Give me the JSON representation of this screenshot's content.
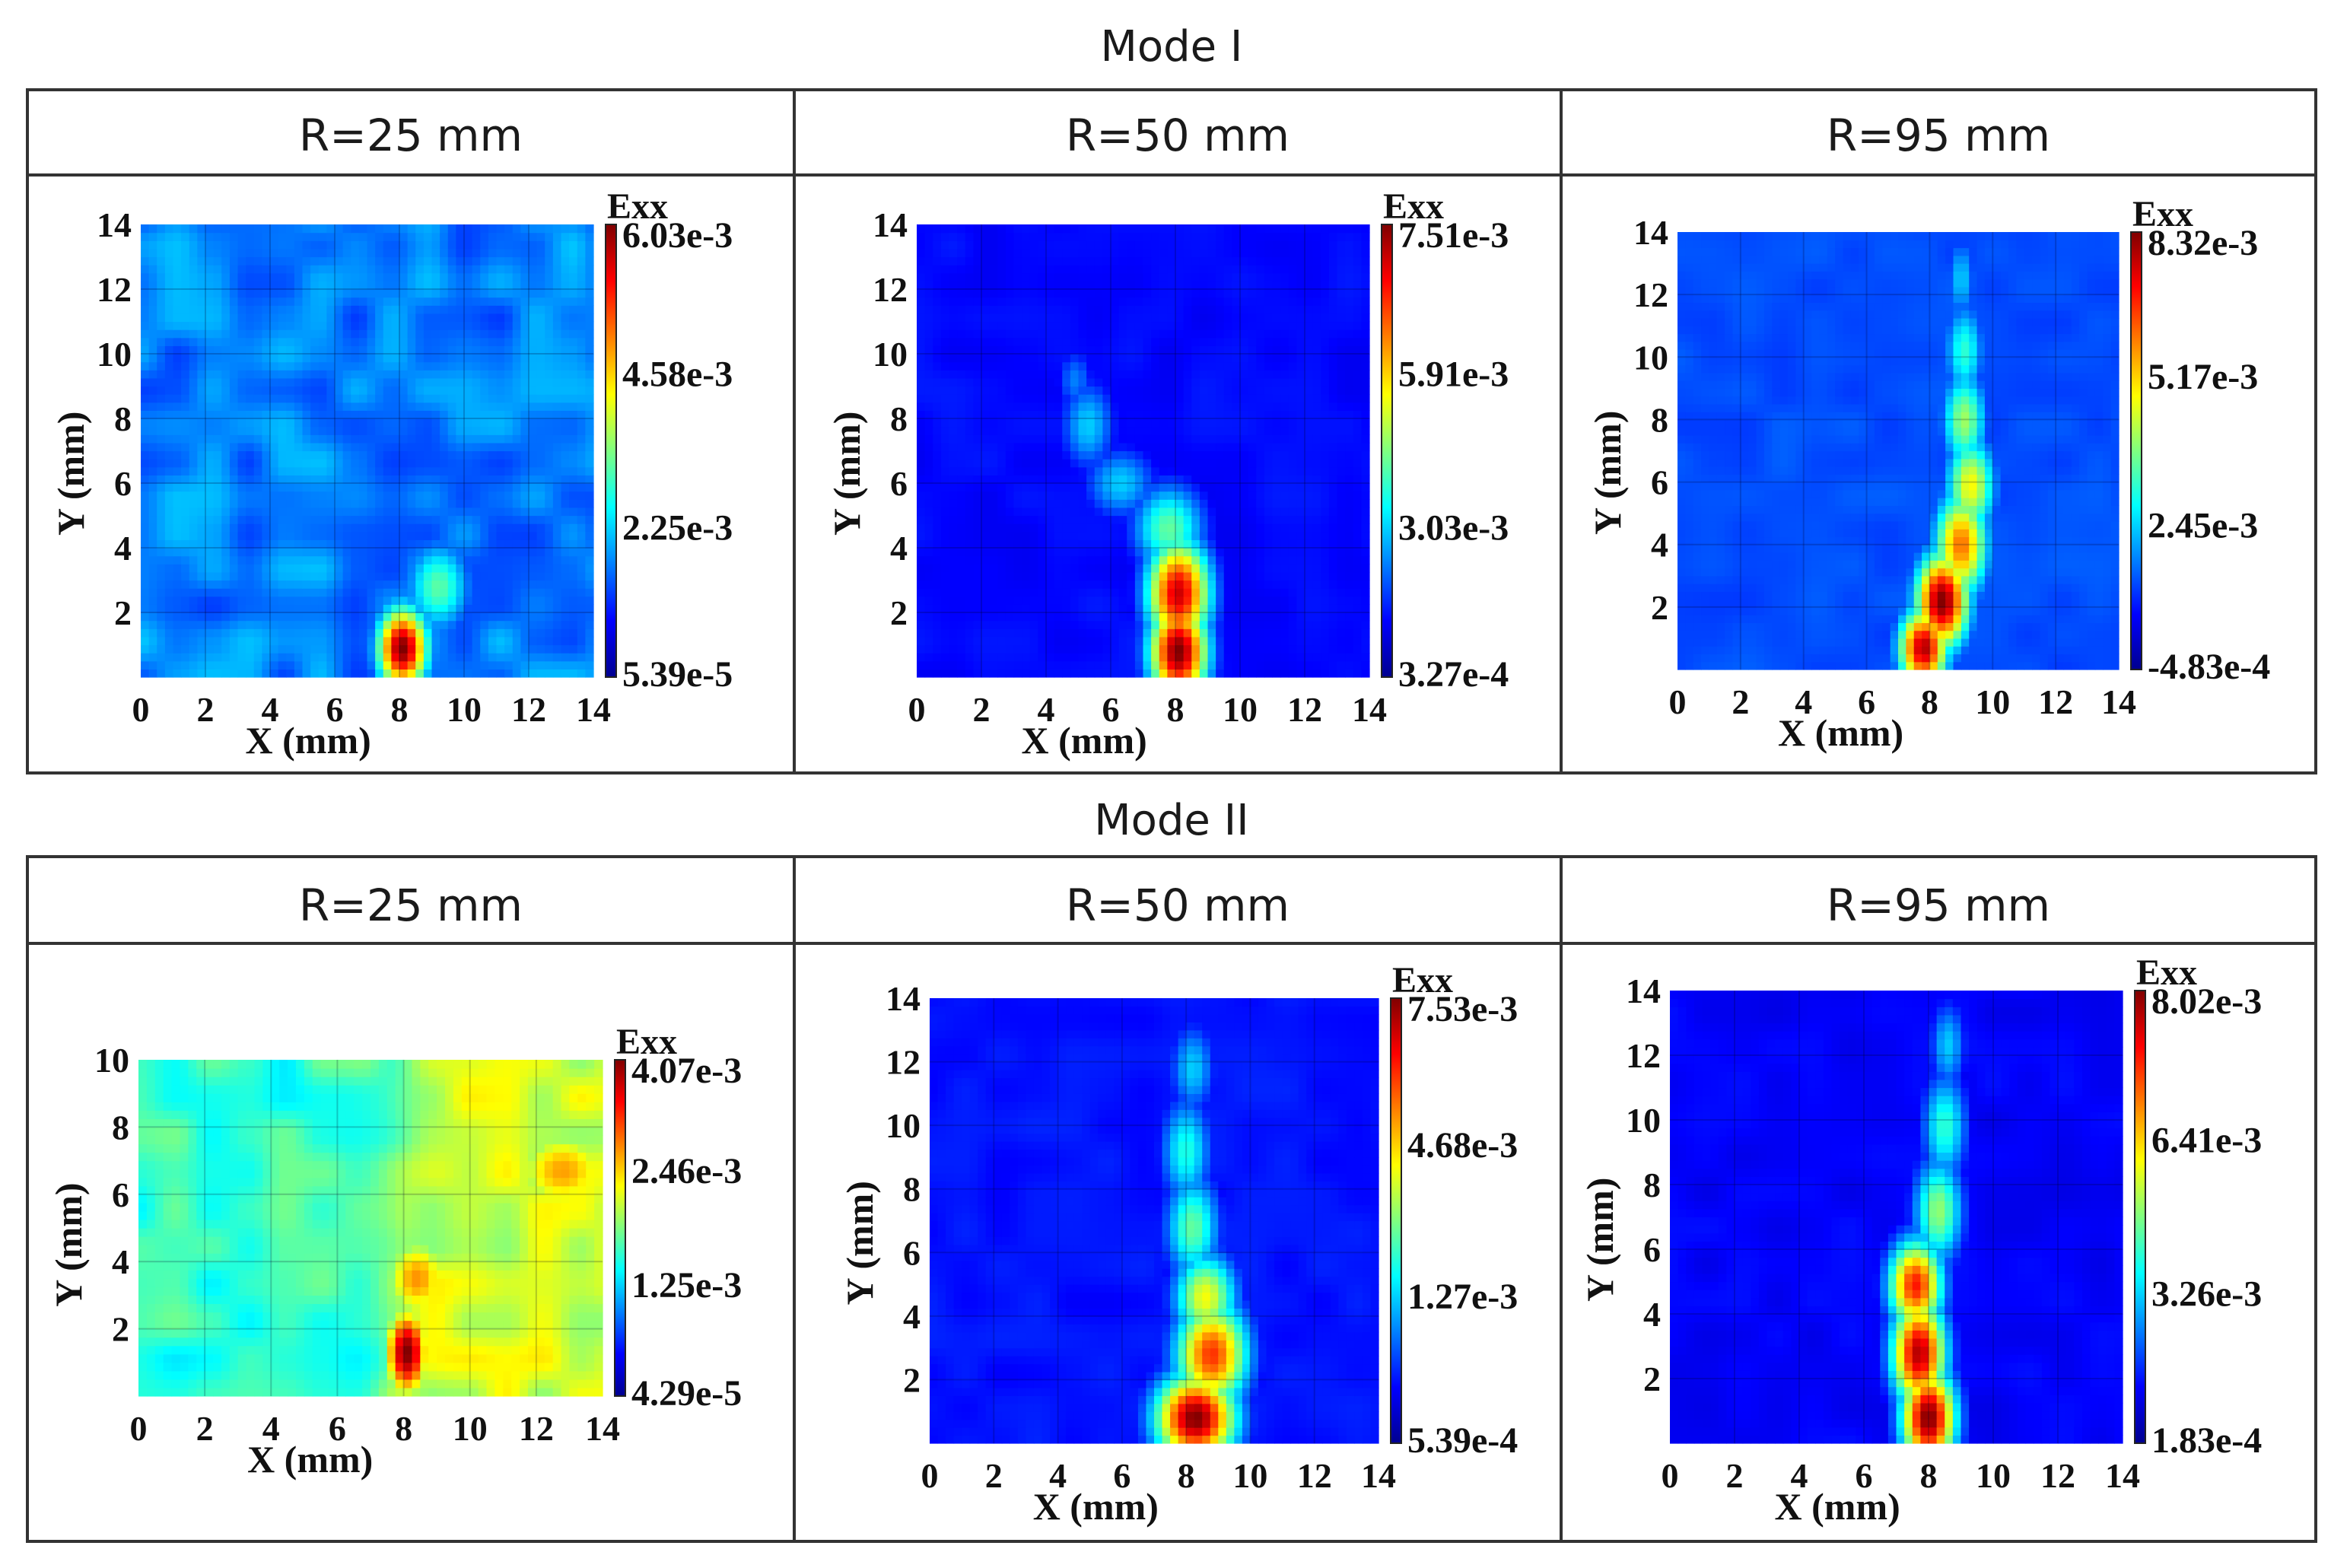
{
  "figure": {
    "modes": [
      {
        "title": "Mode I",
        "panels": [
          {
            "column_title": "R=25 mm",
            "cb_title": "Exx",
            "cb_labels": [
              "6.03e-3",
              "4.58e-3",
              "2.25e-3",
              "5.39e-5"
            ]
          },
          {
            "column_title": "R=50 mm",
            "cb_title": "Exx",
            "cb_labels": [
              "7.51e-3",
              "5.91e-3",
              "3.03e-3",
              "3.27e-4"
            ]
          },
          {
            "column_title": "R=95 mm",
            "cb_title": "Exx",
            "cb_labels": [
              "8.32e-3",
              "5.17e-3",
              "2.45e-3",
              "-4.83e-4"
            ]
          }
        ]
      },
      {
        "title": "Mode II",
        "panels": [
          {
            "column_title": "R=25 mm",
            "cb_title": "Exx",
            "cb_labels": [
              "4.07e-3",
              "2.46e-3",
              "1.25e-3",
              "4.29e-5"
            ]
          },
          {
            "column_title": "R=50 mm",
            "cb_title": "Exx",
            "cb_labels": [
              "7.53e-3",
              "4.68e-3",
              "1.27e-3",
              "5.39e-4"
            ]
          },
          {
            "column_title": "R=95 mm",
            "cb_title": "Exx",
            "cb_labels": [
              "8.02e-3",
              "6.41e-3",
              "3.26e-3",
              "1.83e-4"
            ]
          }
        ]
      }
    ]
  },
  "chart_data": [
    {
      "type": "heatmap",
      "title": "Mode I, R=25 mm",
      "xlabel": "X (mm)",
      "ylabel": "Y (mm)",
      "xlim": [
        0,
        14
      ],
      "ylim": [
        0,
        14
      ],
      "xticks": [
        0,
        2,
        4,
        6,
        8,
        10,
        12,
        14
      ],
      "yticks": [
        2,
        4,
        6,
        8,
        10,
        12,
        14
      ],
      "colorbar": {
        "label": "Exx",
        "max": 0.00603,
        "min": 5.39e-05,
        "ticks": [
          "6.03e-3",
          "4.58e-3",
          "2.25e-3",
          "5.39e-5"
        ]
      },
      "background_level": 0.25,
      "hotspots": [
        {
          "x": 8.1,
          "y": 0.9,
          "sx": 0.55,
          "sy": 0.9,
          "v": 1.0
        },
        {
          "x": 9.2,
          "y": 2.8,
          "sx": 0.7,
          "sy": 1.0,
          "v": 0.42
        },
        {
          "x": 13.0,
          "y": 4.5,
          "sx": 1.3,
          "sy": 1.6,
          "v": 0.15
        }
      ],
      "patchiness": 0.07
    },
    {
      "type": "heatmap",
      "title": "Mode I, R=50 mm",
      "xlabel": "X (mm)",
      "ylabel": "Y (mm)",
      "xlim": [
        0,
        14
      ],
      "ylim": [
        0,
        14
      ],
      "xticks": [
        0,
        2,
        4,
        6,
        8,
        10,
        12,
        14
      ],
      "yticks": [
        2,
        4,
        6,
        8,
        10,
        12,
        14
      ],
      "colorbar": {
        "label": "Exx",
        "max": 0.00751,
        "min": 0.000327,
        "ticks": [
          "7.51e-3",
          "5.91e-3",
          "3.03e-3",
          "3.27e-4"
        ]
      },
      "background_level": 0.13,
      "hotspots": [
        {
          "x": 8.1,
          "y": 0.8,
          "sx": 0.65,
          "sy": 1.1,
          "v": 1.0
        },
        {
          "x": 8.1,
          "y": 2.6,
          "sx": 0.7,
          "sy": 1.2,
          "v": 0.92
        },
        {
          "x": 7.8,
          "y": 4.6,
          "sx": 0.8,
          "sy": 1.0,
          "v": 0.45
        },
        {
          "x": 6.3,
          "y": 6.0,
          "sx": 0.8,
          "sy": 0.8,
          "v": 0.3
        },
        {
          "x": 5.3,
          "y": 7.8,
          "sx": 0.6,
          "sy": 1.0,
          "v": 0.3
        },
        {
          "x": 4.9,
          "y": 9.2,
          "sx": 0.4,
          "sy": 0.7,
          "v": 0.22
        }
      ],
      "patchiness": 0.02
    },
    {
      "type": "heatmap",
      "title": "Mode I, R=95 mm",
      "xlabel": "X (mm)",
      "ylabel": "Y (mm)",
      "xlim": [
        0,
        14
      ],
      "ylim": [
        0,
        14
      ],
      "xticks": [
        0,
        2,
        4,
        6,
        8,
        10,
        12,
        14
      ],
      "yticks": [
        2,
        4,
        6,
        8,
        10,
        12,
        14
      ],
      "colorbar": {
        "label": "Exx",
        "max": 0.00832,
        "min": -0.000483,
        "ticks": [
          "8.32e-3",
          "5.17e-3",
          "2.45e-3",
          "-4.83e-4"
        ]
      },
      "background_level": 0.2,
      "hotspots": [
        {
          "x": 7.8,
          "y": 0.7,
          "sx": 0.55,
          "sy": 0.9,
          "v": 0.95
        },
        {
          "x": 8.4,
          "y": 2.2,
          "sx": 0.6,
          "sy": 1.1,
          "v": 1.0
        },
        {
          "x": 9.0,
          "y": 4.0,
          "sx": 0.6,
          "sy": 1.2,
          "v": 0.75
        },
        {
          "x": 9.3,
          "y": 5.9,
          "sx": 0.55,
          "sy": 1.1,
          "v": 0.6
        },
        {
          "x": 9.1,
          "y": 8.0,
          "sx": 0.5,
          "sy": 1.1,
          "v": 0.5
        },
        {
          "x": 9.1,
          "y": 10.2,
          "sx": 0.45,
          "sy": 1.1,
          "v": 0.38
        },
        {
          "x": 9.0,
          "y": 12.5,
          "sx": 0.35,
          "sy": 1.0,
          "v": 0.28
        }
      ],
      "patchiness": 0.02
    },
    {
      "type": "heatmap",
      "title": "Mode II, R=25 mm",
      "xlabel": "X (mm)",
      "ylabel": "Y (mm)",
      "xlim": [
        0,
        14
      ],
      "ylim": [
        0,
        10
      ],
      "xticks": [
        0,
        2,
        4,
        6,
        8,
        10,
        12,
        14
      ],
      "yticks": [
        2,
        4,
        6,
        8,
        10
      ],
      "colorbar": {
        "label": "Exx",
        "max": 0.00407,
        "min": 4.29e-05,
        "ticks": [
          "4.07e-3",
          "2.46e-3",
          "1.25e-3",
          "4.29e-5"
        ]
      },
      "background_level": 0.42,
      "right_region_level": 0.58,
      "right_region_start_x": 7.8,
      "hotspots": [
        {
          "x": 8.1,
          "y": 1.3,
          "sx": 0.5,
          "sy": 1.0,
          "v": 1.0
        },
        {
          "x": 8.4,
          "y": 3.5,
          "sx": 0.8,
          "sy": 1.0,
          "v": 0.68
        },
        {
          "x": 12.8,
          "y": 6.7,
          "sx": 1.2,
          "sy": 1.0,
          "v": 0.66
        },
        {
          "x": 0.8,
          "y": 9.5,
          "sx": 0.6,
          "sy": 0.6,
          "v": 0.26
        }
      ],
      "patchiness": 0.07
    },
    {
      "type": "heatmap",
      "title": "Mode II, R=50 mm",
      "xlabel": "X (mm)",
      "ylabel": "Y (mm)",
      "xlim": [
        0,
        14
      ],
      "ylim": [
        0,
        14
      ],
      "xticks": [
        0,
        2,
        4,
        6,
        8,
        10,
        12,
        14
      ],
      "yticks": [
        2,
        4,
        6,
        8,
        10,
        12,
        14
      ],
      "colorbar": {
        "label": "Exx",
        "max": 0.00753,
        "min": 0.000539,
        "ticks": [
          "7.53e-3",
          "4.68e-3",
          "1.27e-3",
          "5.39e-4"
        ]
      },
      "background_level": 0.14,
      "hotspots": [
        {
          "x": 8.3,
          "y": 0.8,
          "sx": 0.9,
          "sy": 1.0,
          "v": 1.0
        },
        {
          "x": 8.8,
          "y": 2.8,
          "sx": 0.8,
          "sy": 1.2,
          "v": 0.82
        },
        {
          "x": 8.6,
          "y": 4.6,
          "sx": 0.7,
          "sy": 1.0,
          "v": 0.6
        },
        {
          "x": 8.2,
          "y": 6.8,
          "sx": 0.6,
          "sy": 1.2,
          "v": 0.45
        },
        {
          "x": 8.0,
          "y": 9.2,
          "sx": 0.55,
          "sy": 1.2,
          "v": 0.38
        },
        {
          "x": 8.2,
          "y": 11.8,
          "sx": 0.5,
          "sy": 1.0,
          "v": 0.3
        }
      ],
      "patchiness": 0.02
    },
    {
      "type": "heatmap",
      "title": "Mode II, R=95 mm",
      "xlabel": "X (mm)",
      "ylabel": "Y (mm)",
      "xlim": [
        0,
        14
      ],
      "ylim": [
        0,
        14
      ],
      "xticks": [
        0,
        2,
        4,
        6,
        8,
        10,
        12,
        14
      ],
      "yticks": [
        2,
        4,
        6,
        8,
        10,
        12,
        14
      ],
      "colorbar": {
        "label": "Exx",
        "max": 0.00802,
        "min": 0.000183,
        "ticks": [
          "8.02e-3",
          "6.41e-3",
          "3.26e-3",
          "1.83e-4"
        ]
      },
      "background_level": 0.12,
      "hotspots": [
        {
          "x": 8.0,
          "y": 0.8,
          "sx": 0.6,
          "sy": 1.1,
          "v": 1.0
        },
        {
          "x": 7.7,
          "y": 2.8,
          "sx": 0.6,
          "sy": 1.2,
          "v": 0.95
        },
        {
          "x": 7.6,
          "y": 4.9,
          "sx": 0.6,
          "sy": 1.0,
          "v": 0.85
        },
        {
          "x": 8.3,
          "y": 7.2,
          "sx": 0.55,
          "sy": 1.2,
          "v": 0.5
        },
        {
          "x": 8.5,
          "y": 9.8,
          "sx": 0.5,
          "sy": 1.2,
          "v": 0.4
        },
        {
          "x": 8.6,
          "y": 12.3,
          "sx": 0.4,
          "sy": 1.0,
          "v": 0.3
        }
      ],
      "patchiness": 0.02
    }
  ]
}
